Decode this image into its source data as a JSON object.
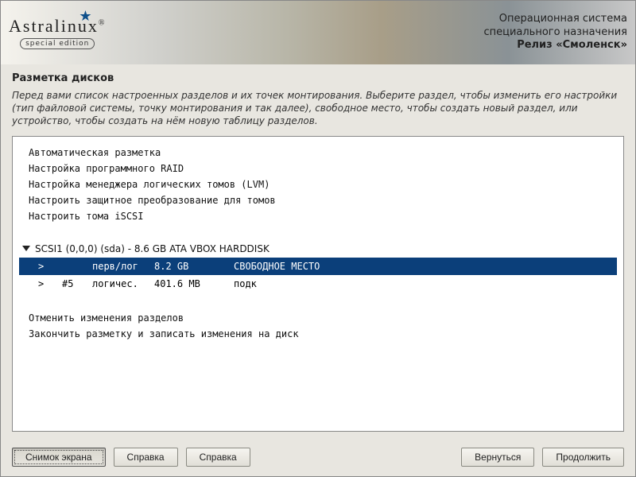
{
  "banner": {
    "logo_main": "Astralinux",
    "logo_reg": "®",
    "logo_sub": "special edition",
    "line1": "Операционная система",
    "line2": "специального назначения",
    "release": "Релиз «Смоленск»"
  },
  "title": "Разметка дисков",
  "instructions": "Перед вами список настроенных разделов и их точек монтирования. Выберите раздел, чтобы изменить его настройки (тип файловой системы, точку монтирования и так далее), свободное место, чтобы создать новый раздел, или устройство, чтобы создать на нём новую таблицу разделов.",
  "options": {
    "o1": "Автоматическая разметка",
    "o2": "Настройка программного RAID",
    "o3": "Настройка менеджера логических томов (LVM)",
    "o4": "Настроить защитное преобразование для томов",
    "o5": "Настроить тома iSCSI"
  },
  "disk_header": "SCSI1 (0,0,0) (sda) - 8.6 GB ATA VBOX HARDDISK",
  "partitions": [
    {
      "arrow": ">",
      "num": "",
      "type": "перв/лог",
      "size": "8.2 GB",
      "desc": "СВОБОДНОЕ МЕСТО",
      "selected": true
    },
    {
      "arrow": ">",
      "num": "#5",
      "type": "логичес.",
      "size": "401.6 MB",
      "desc": "подк",
      "selected": false
    }
  ],
  "actions": {
    "a1": "Отменить изменения разделов",
    "a2": "Закончить разметку и записать изменения на диск"
  },
  "buttons": {
    "screenshot": "Снимок экрана",
    "help1": "Справка",
    "help2": "Справка",
    "back": "Вернуться",
    "next": "Продолжить"
  },
  "colors": {
    "selection_bg": "#0b3f7a",
    "panel_bg": "#ffffff",
    "page_bg": "#e8e6e0"
  }
}
